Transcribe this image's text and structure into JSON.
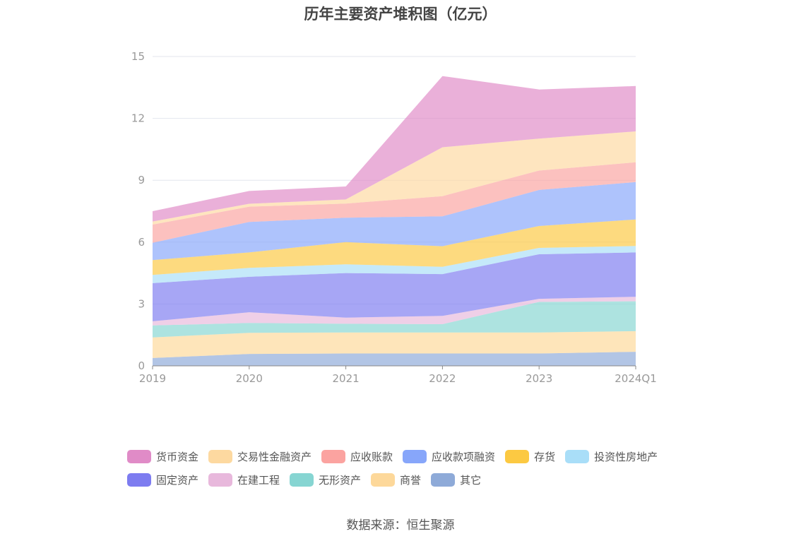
{
  "chart_data": {
    "type": "area",
    "stacked": true,
    "title": "历年主要资产堆积图（亿元）",
    "categories": [
      "2019",
      "2020",
      "2021",
      "2022",
      "2023",
      "2024Q1"
    ],
    "ylim": [
      0,
      15
    ],
    "yticks": [
      0,
      3,
      6,
      9,
      12,
      15
    ],
    "grid": true,
    "legend_position": "bottom",
    "series": [
      {
        "name": "其它",
        "color": "#8eaad8",
        "values": [
          0.38,
          0.58,
          0.6,
          0.6,
          0.6,
          0.68
        ]
      },
      {
        "name": "商誉",
        "color": "#fdd89a",
        "values": [
          1.0,
          1.02,
          1.02,
          1.02,
          1.02,
          1.0
        ]
      },
      {
        "name": "无形资产",
        "color": "#86d5d2",
        "values": [
          0.58,
          0.48,
          0.42,
          0.4,
          1.48,
          1.45
        ]
      },
      {
        "name": "在建工程",
        "color": "#e8b8dc",
        "values": [
          0.2,
          0.52,
          0.3,
          0.4,
          0.15,
          0.22
        ]
      },
      {
        "name": "固定资产",
        "color": "#7d7cf0",
        "values": [
          1.85,
          1.72,
          2.16,
          2.03,
          2.16,
          2.15
        ]
      },
      {
        "name": "投资性房地产",
        "color": "#a9def8",
        "values": [
          0.4,
          0.43,
          0.42,
          0.35,
          0.31,
          0.31
        ]
      },
      {
        "name": "存货",
        "color": "#fcc942",
        "values": [
          0.72,
          0.75,
          1.08,
          1.0,
          1.06,
          1.29
        ]
      },
      {
        "name": "应收款项融资",
        "color": "#87a6fa",
        "values": [
          0.84,
          1.48,
          1.18,
          1.45,
          1.75,
          1.81
        ]
      },
      {
        "name": "应收账款",
        "color": "#fba3a0",
        "values": [
          0.88,
          0.74,
          0.69,
          0.98,
          0.94,
          0.96
        ]
      },
      {
        "name": "交易性金融资产",
        "color": "#fdd9a0",
        "values": [
          0.15,
          0.14,
          0.2,
          2.37,
          1.55,
          1.5
        ]
      },
      {
        "name": "货币资金",
        "color": "#e08bc7",
        "values": [
          0.5,
          0.62,
          0.63,
          3.45,
          2.38,
          2.2
        ]
      }
    ]
  },
  "legend_rows": [
    [
      "货币资金",
      "交易性金融资产",
      "应收账款",
      "应收款项融资",
      "存货",
      "投资性房地产"
    ],
    [
      "固定资产",
      "在建工程",
      "无形资产",
      "商誉",
      "其它"
    ]
  ],
  "source": "数据来源：恒生聚源"
}
